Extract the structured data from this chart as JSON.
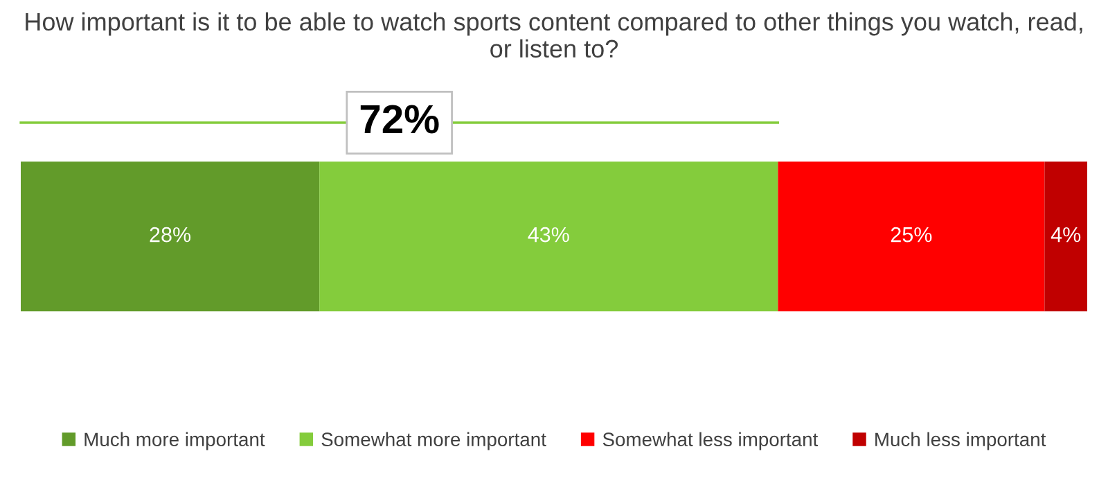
{
  "chart_data": {
    "type": "bar",
    "orientation": "horizontal",
    "stacked": true,
    "title": "How important is it to be able to watch sports content compared to other things you watch, read, or listen to?",
    "categories": [
      null
    ],
    "series": [
      {
        "name": "Much more important",
        "color": "#629b2a",
        "values": [
          28
        ],
        "value_labels": [
          "28%"
        ]
      },
      {
        "name": "Somewhat more important",
        "color": "#84cc3c",
        "values": [
          43
        ],
        "value_labels": [
          "43%"
        ]
      },
      {
        "name": "Somewhat less important",
        "color": "#ff0000",
        "values": [
          25
        ],
        "value_labels": [
          "25%"
        ]
      },
      {
        "name": "Much less important",
        "color": "#c00000",
        "values": [
          4
        ],
        "value_labels": [
          "4%"
        ]
      }
    ],
    "legend": "bottom",
    "tick_labels": false,
    "grid": false,
    "annotations": [
      "72%"
    ]
  }
}
